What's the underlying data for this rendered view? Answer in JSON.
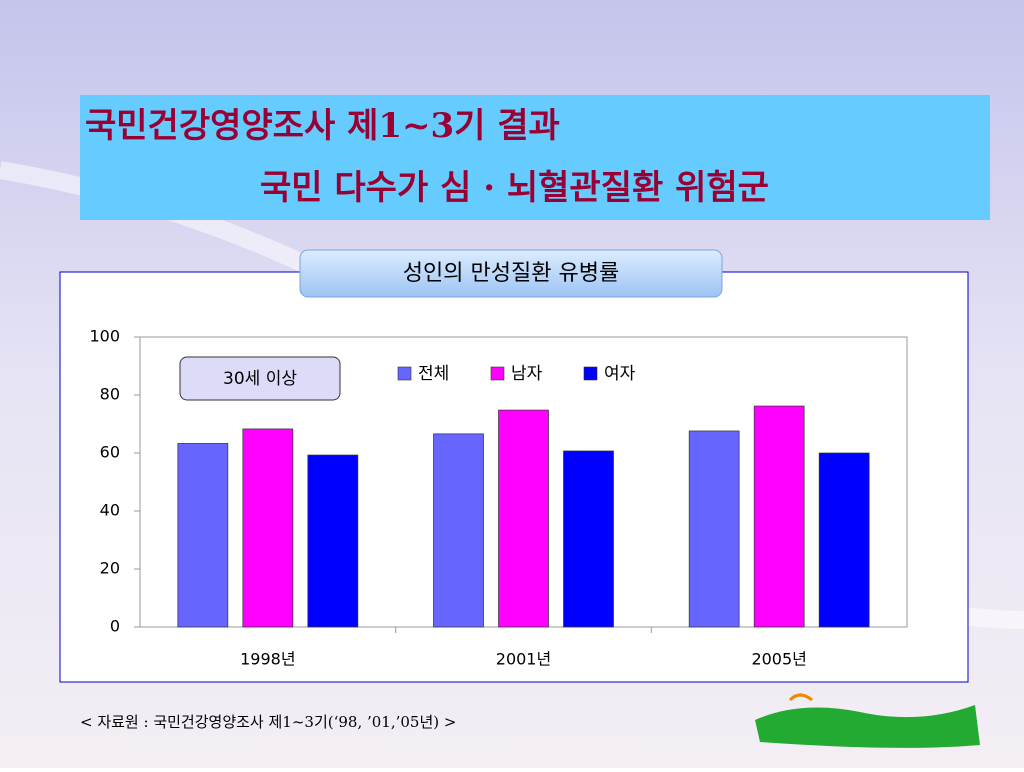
{
  "title_lines": [
    "국민건강영양조사 제1~3기 결과",
    "국민 다수가 심 · 뇌혈관질환 위험군"
  ],
  "source": "< 자료원 : 국민건강영양조사 제1~3기(‘98, ’01,’05년) >",
  "chart_data": {
    "type": "bar",
    "title": "성인의 만성질환 유병률",
    "annotation": "30세 이상",
    "categories": [
      "1998년",
      "2001년",
      "2005년"
    ],
    "series": [
      {
        "name": "전체",
        "color": "#6666ff",
        "values": [
          63.3,
          66.6,
          67.6
        ]
      },
      {
        "name": "남자",
        "color": "#ff00ff",
        "values": [
          68.3,
          74.8,
          76.2
        ]
      },
      {
        "name": "여자",
        "color": "#0000ff",
        "values": [
          59.3,
          60.7,
          60.0
        ]
      }
    ],
    "ylim": [
      0,
      100
    ],
    "yticks": [
      0,
      20,
      40,
      60,
      80,
      100
    ],
    "grid": false
  }
}
